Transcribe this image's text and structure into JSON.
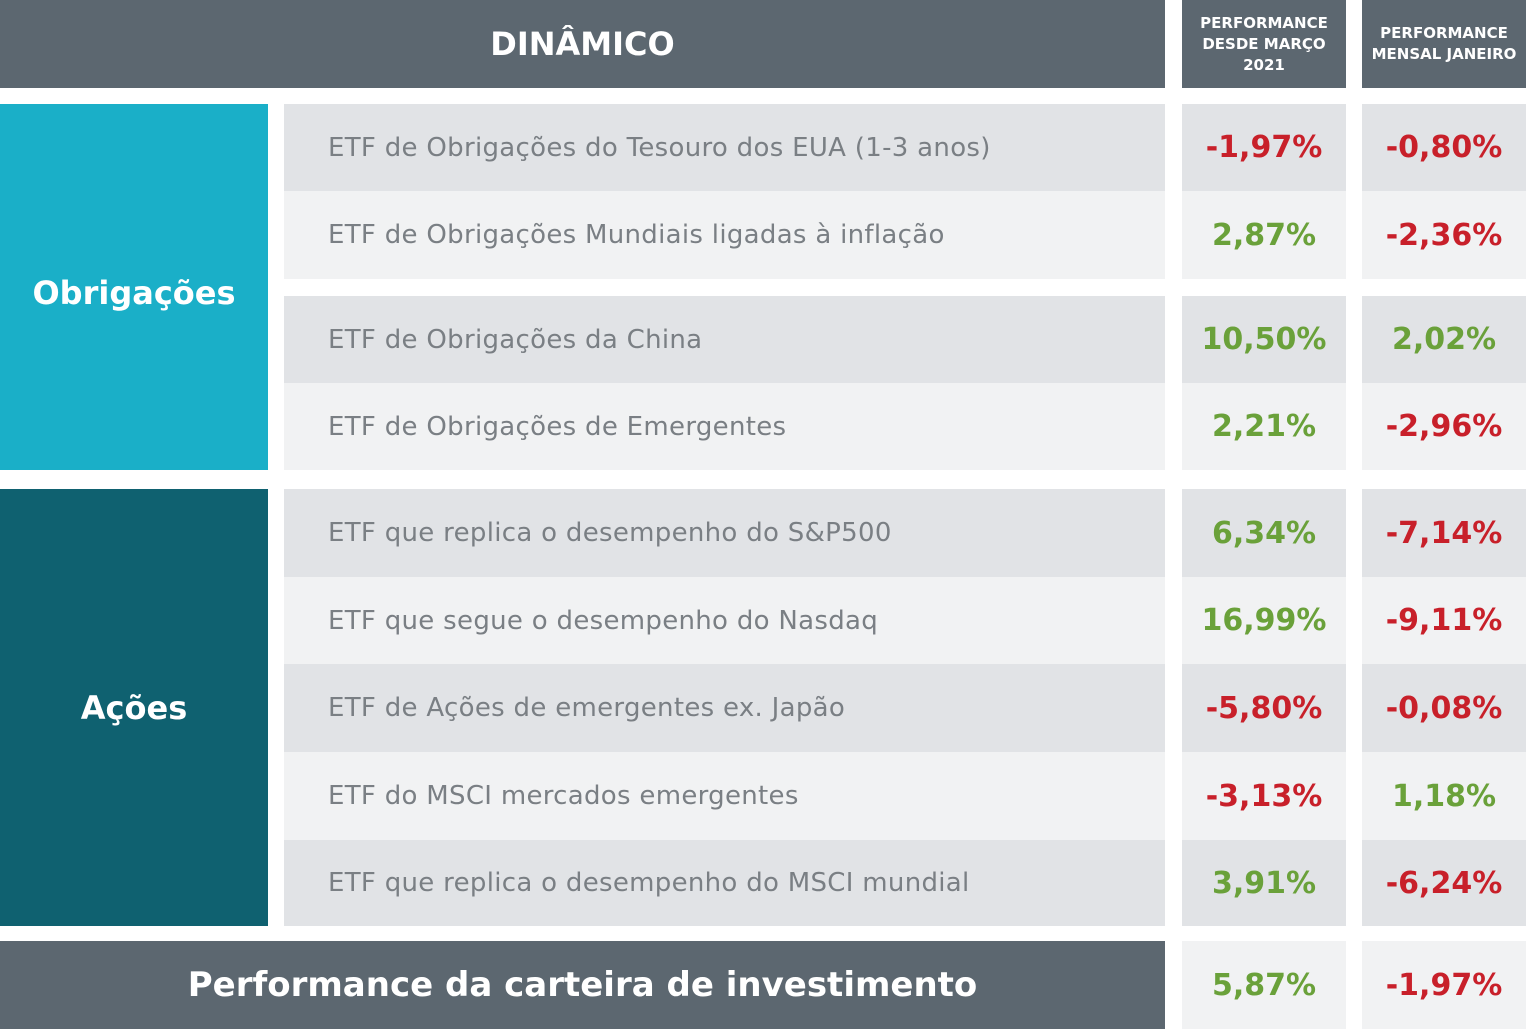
{
  "header": {
    "title": "DINÂMICO",
    "col1": "PERFORMANCE DESDE MARÇO 2021",
    "col2": "PERFORMANCE MENSAL JANEIRO"
  },
  "colors": {
    "header": "#5c6770",
    "bonds": "#1aafc8",
    "equities": "#0f6170",
    "negative": "#c8202a",
    "positive": "#6aa13a"
  },
  "groups": [
    {
      "label": "Obrigações"
    },
    {
      "label": "Ações"
    }
  ],
  "rows": [
    {
      "name": "ETF de Obrigações do Tesouro dos EUA (1-3 anos)",
      "since_march": "-1,97%",
      "january": "-0,80%"
    },
    {
      "name": "ETF de Obrigações Mundiais ligadas à inflação",
      "since_march": "2,87%",
      "january": "-2,36%"
    },
    {
      "name": "ETF de Obrigações da China",
      "since_march": "10,50%",
      "january": "2,02%"
    },
    {
      "name": "ETF de Obrigações de Emergentes",
      "since_march": "2,21%",
      "january": "-2,96%"
    },
    {
      "name": "ETF que replica o desempenho do S&P500",
      "since_march": "6,34%",
      "january": "-7,14%"
    },
    {
      "name": "ETF que segue o desempenho do Nasdaq",
      "since_march": "16,99%",
      "january": "-9,11%"
    },
    {
      "name": "ETF de Ações de emergentes ex. Japão",
      "since_march": "-5,80%",
      "january": "-0,08%"
    },
    {
      "name": "ETF do MSCI  mercados emergentes",
      "since_march": "-3,13%",
      "january": "1,18%"
    },
    {
      "name": "ETF que replica o desempenho do MSCI mundial",
      "since_march": "3,91%",
      "january": "-6,24%"
    }
  ],
  "footer": {
    "label": "Performance da carteira de investimento",
    "since_march": "5,87%",
    "january": "-1,97%"
  }
}
